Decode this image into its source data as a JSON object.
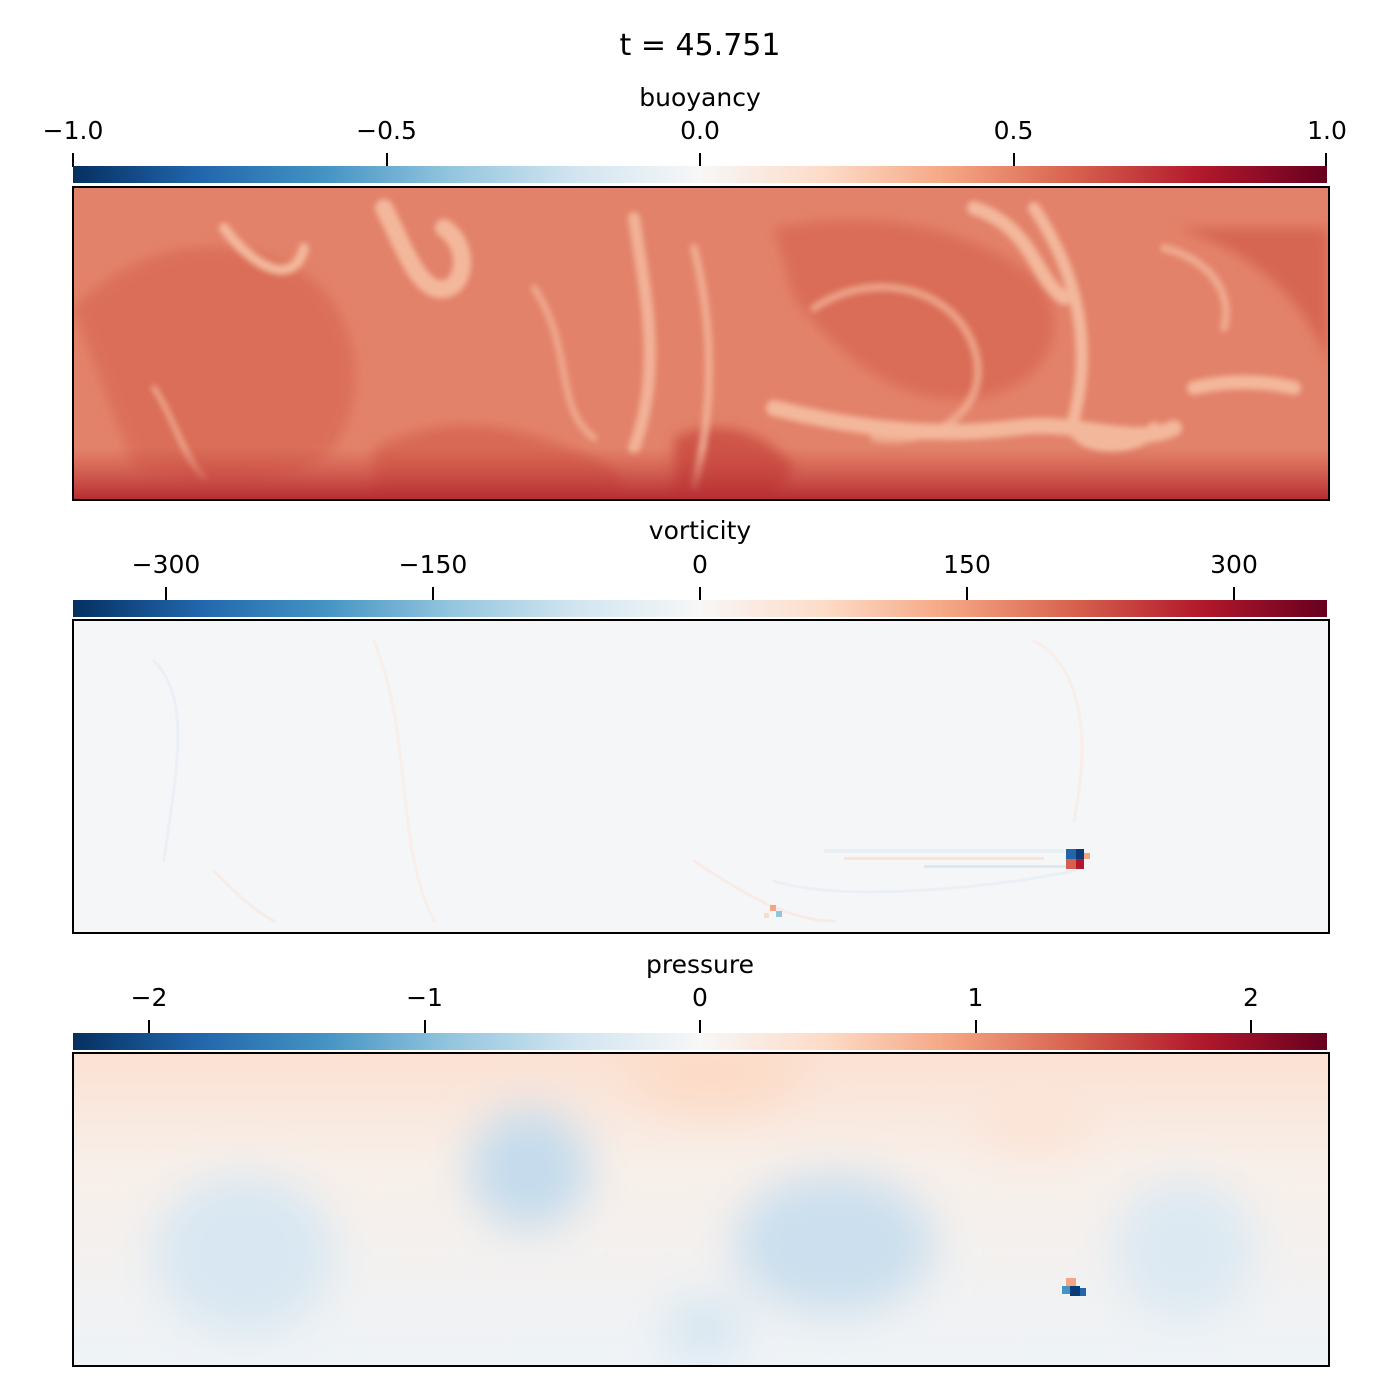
{
  "figure": {
    "title": "t = 45.751"
  },
  "chart_data": [
    {
      "type": "heatmap",
      "title": "buoyancy",
      "colormap": "RdBu_r",
      "clim": [
        -1.0,
        1.0
      ],
      "ticks": [
        -1.0,
        -0.5,
        0.0,
        0.5,
        1.0
      ],
      "tick_labels": [
        "−1.0",
        "−0.5",
        "0.0",
        "0.5",
        "1.0"
      ],
      "field_description": "mostly ~0.45 throughout, lighter plumes/filaments ~0.25, darker boundary layer ~0.8 at bottom"
    },
    {
      "type": "heatmap",
      "title": "vorticity",
      "colormap": "RdBu_r",
      "clim": [
        -350,
        350
      ],
      "ticks": [
        -300,
        -150,
        0,
        150,
        300
      ],
      "tick_labels": [
        "−300",
        "−150",
        "0",
        "150",
        "300"
      ],
      "field_description": "near zero almost everywhere with a localized dipole near lower right"
    },
    {
      "type": "heatmap",
      "title": "pressure",
      "colormap": "RdBu_r",
      "clim": [
        -2.3,
        2.3
      ],
      "ticks": [
        -2,
        -1,
        0,
        1,
        2
      ],
      "tick_labels": [
        "−2",
        "−1",
        "0",
        "1",
        "2"
      ],
      "field_description": "slightly positive along top, slightly negative blobs in middle, localized dipole near lower right"
    }
  ],
  "colors": {
    "rdbu": [
      "#053061",
      "#2166ac",
      "#4393c3",
      "#92c5de",
      "#d1e5f0",
      "#f7f7f7",
      "#fddbc7",
      "#f4a582",
      "#d6604d",
      "#b2182b",
      "#67001f"
    ],
    "buoyancy_base": "#e3826a",
    "buoyancy_light": "#f3b89c",
    "buoyancy_dark": "#c7413b",
    "neutral": "#f5f6f7",
    "pressure_pos": "#fbe3d6",
    "pressure_neg": "#d6e7f2"
  }
}
